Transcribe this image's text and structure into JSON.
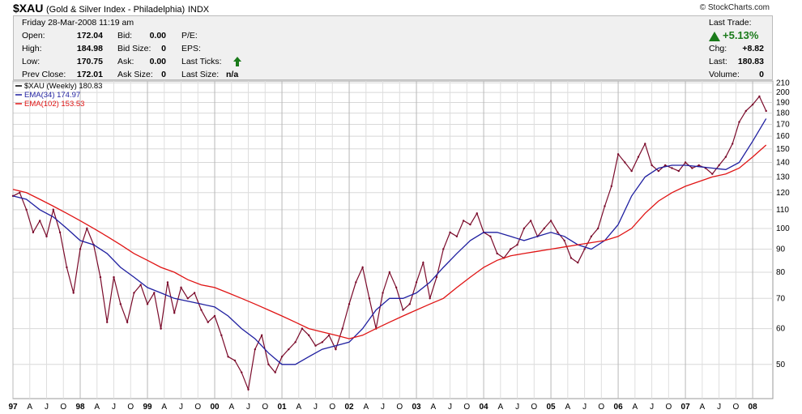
{
  "header": {
    "symbol": "$XAU",
    "name": "(Gold & Silver Index - Philadelphia)",
    "exchange": "INDX",
    "copyright": "© StockCharts.com",
    "date_line": "Friday  28-Mar-2008  11:19 am"
  },
  "quote": {
    "open_label": "Open:",
    "open": "172.04",
    "high_label": "High:",
    "high": "184.98",
    "low_label": "Low:",
    "low": "170.75",
    "prev_close_label": "Prev Close:",
    "prev_close": "172.01",
    "bid_label": "Bid:",
    "bid": "0.00",
    "bid_size_label": "Bid Size:",
    "bid_size": "0",
    "ask_label": "Ask:",
    "ask": "0.00",
    "ask_size_label": "Ask Size:",
    "ask_size": "0",
    "pe_label": "P/E:",
    "eps_label": "EPS:",
    "last_ticks_label": "Last Ticks:",
    "last_size_label": "Last Size:",
    "last_size": "n/a",
    "last_trade_label": "Last Trade:",
    "pct_change": "+5.13%",
    "chg_label": "Chg:",
    "chg": "+8.82",
    "last_label": "Last:",
    "last": "180.83",
    "volume_label": "Volume:",
    "volume": "0",
    "up_color": "#1a7a1a"
  },
  "chart_data": {
    "type": "line",
    "legend": [
      {
        "text": "$XAU (Weekly) 180.83",
        "color": "#000000"
      },
      {
        "text": "EMA(34) 174.97",
        "color": "#1f1fa0"
      },
      {
        "text": "EMA(102) 153.53",
        "color": "#e01414"
      }
    ],
    "y_scale": "log",
    "ylim": [
      42,
      212
    ],
    "y_ticks": [
      50,
      60,
      70,
      80,
      90,
      100,
      110,
      120,
      130,
      140,
      150,
      160,
      170,
      180,
      190,
      200,
      210
    ],
    "x_start": 1997.0,
    "x_end": 2008.3,
    "x_ticks": [
      {
        "label": "97",
        "x": 1997.0,
        "major": true
      },
      {
        "label": "A",
        "x": 1997.25
      },
      {
        "label": "J",
        "x": 1997.5
      },
      {
        "label": "O",
        "x": 1997.75
      },
      {
        "label": "98",
        "x": 1998.0,
        "major": true
      },
      {
        "label": "A",
        "x": 1998.25
      },
      {
        "label": "J",
        "x": 1998.5
      },
      {
        "label": "O",
        "x": 1998.75
      },
      {
        "label": "99",
        "x": 1999.0,
        "major": true
      },
      {
        "label": "A",
        "x": 1999.25
      },
      {
        "label": "J",
        "x": 1999.5
      },
      {
        "label": "O",
        "x": 1999.75
      },
      {
        "label": "00",
        "x": 2000.0,
        "major": true
      },
      {
        "label": "A",
        "x": 2000.25
      },
      {
        "label": "J",
        "x": 2000.5
      },
      {
        "label": "O",
        "x": 2000.75
      },
      {
        "label": "01",
        "x": 2001.0,
        "major": true
      },
      {
        "label": "A",
        "x": 2001.25
      },
      {
        "label": "J",
        "x": 2001.5
      },
      {
        "label": "O",
        "x": 2001.75
      },
      {
        "label": "02",
        "x": 2002.0,
        "major": true
      },
      {
        "label": "A",
        "x": 2002.25
      },
      {
        "label": "J",
        "x": 2002.5
      },
      {
        "label": "O",
        "x": 2002.75
      },
      {
        "label": "03",
        "x": 2003.0,
        "major": true
      },
      {
        "label": "A",
        "x": 2003.25
      },
      {
        "label": "J",
        "x": 2003.5
      },
      {
        "label": "O",
        "x": 2003.75
      },
      {
        "label": "04",
        "x": 2004.0,
        "major": true
      },
      {
        "label": "A",
        "x": 2004.25
      },
      {
        "label": "J",
        "x": 2004.5
      },
      {
        "label": "O",
        "x": 2004.75
      },
      {
        "label": "05",
        "x": 2005.0,
        "major": true
      },
      {
        "label": "A",
        "x": 2005.25
      },
      {
        "label": "J",
        "x": 2005.5
      },
      {
        "label": "O",
        "x": 2005.75
      },
      {
        "label": "06",
        "x": 2006.0,
        "major": true
      },
      {
        "label": "A",
        "x": 2006.25
      },
      {
        "label": "J",
        "x": 2006.5
      },
      {
        "label": "O",
        "x": 2006.75
      },
      {
        "label": "07",
        "x": 2007.0,
        "major": true
      },
      {
        "label": "A",
        "x": 2007.25
      },
      {
        "label": "J",
        "x": 2007.5
      },
      {
        "label": "O",
        "x": 2007.75
      },
      {
        "label": "08",
        "x": 2008.0,
        "major": true
      }
    ],
    "series": [
      {
        "name": "$XAU (Weekly)",
        "color": "#7a0a2a",
        "x": [
          1997.0,
          1997.1,
          1997.2,
          1997.3,
          1997.4,
          1997.5,
          1997.6,
          1997.7,
          1997.8,
          1997.9,
          1998.0,
          1998.1,
          1998.2,
          1998.3,
          1998.4,
          1998.5,
          1998.6,
          1998.7,
          1998.8,
          1998.9,
          1999.0,
          1999.1,
          1999.2,
          1999.3,
          1999.4,
          1999.5,
          1999.6,
          1999.7,
          1999.8,
          1999.9,
          2000.0,
          2000.1,
          2000.2,
          2000.3,
          2000.4,
          2000.5,
          2000.6,
          2000.7,
          2000.8,
          2000.9,
          2001.0,
          2001.1,
          2001.2,
          2001.3,
          2001.4,
          2001.5,
          2001.6,
          2001.7,
          2001.8,
          2001.9,
          2002.0,
          2002.1,
          2002.2,
          2002.3,
          2002.4,
          2002.5,
          2002.6,
          2002.7,
          2002.8,
          2002.9,
          2003.0,
          2003.1,
          2003.2,
          2003.3,
          2003.4,
          2003.5,
          2003.6,
          2003.7,
          2003.8,
          2003.9,
          2004.0,
          2004.1,
          2004.2,
          2004.3,
          2004.4,
          2004.5,
          2004.6,
          2004.7,
          2004.8,
          2004.9,
          2005.0,
          2005.1,
          2005.2,
          2005.3,
          2005.4,
          2005.5,
          2005.6,
          2005.7,
          2005.8,
          2005.9,
          2006.0,
          2006.1,
          2006.2,
          2006.3,
          2006.4,
          2006.5,
          2006.6,
          2006.7,
          2006.8,
          2006.9,
          2007.0,
          2007.1,
          2007.2,
          2007.3,
          2007.4,
          2007.5,
          2007.6,
          2007.7,
          2007.8,
          2007.9,
          2008.0,
          2008.1,
          2008.2
        ],
        "values": [
          118,
          120,
          110,
          98,
          104,
          96,
          110,
          98,
          82,
          72,
          90,
          100,
          92,
          78,
          62,
          78,
          68,
          62,
          72,
          75,
          68,
          72,
          60,
          76,
          65,
          74,
          70,
          72,
          66,
          62,
          64,
          58,
          52,
          51,
          48,
          44,
          54,
          58,
          50,
          48,
          52,
          54,
          56,
          60,
          58,
          55,
          56,
          58,
          54,
          60,
          68,
          76,
          82,
          70,
          60,
          72,
          80,
          74,
          66,
          68,
          76,
          84,
          70,
          78,
          90,
          98,
          96,
          104,
          102,
          108,
          98,
          96,
          88,
          86,
          90,
          92,
          100,
          104,
          96,
          100,
          104,
          98,
          94,
          86,
          84,
          90,
          96,
          100,
          112,
          124,
          146,
          140,
          134,
          144,
          154,
          138,
          134,
          138,
          136,
          134,
          140,
          136,
          138,
          136,
          132,
          138,
          144,
          154,
          172,
          182,
          188,
          196,
          182
        ]
      },
      {
        "name": "EMA(34)",
        "color": "#1f1fa0",
        "x": [
          1997.0,
          1997.2,
          1997.4,
          1997.6,
          1997.8,
          1998.0,
          1998.2,
          1998.4,
          1998.6,
          1998.8,
          1999.0,
          1999.2,
          1999.4,
          1999.6,
          1999.8,
          2000.0,
          2000.2,
          2000.4,
          2000.6,
          2000.8,
          2001.0,
          2001.2,
          2001.4,
          2001.6,
          2001.8,
          2002.0,
          2002.2,
          2002.4,
          2002.6,
          2002.8,
          2003.0,
          2003.2,
          2003.4,
          2003.6,
          2003.8,
          2004.0,
          2004.2,
          2004.4,
          2004.6,
          2004.8,
          2005.0,
          2005.2,
          2005.4,
          2005.6,
          2005.8,
          2006.0,
          2006.2,
          2006.4,
          2006.6,
          2006.8,
          2007.0,
          2007.2,
          2007.4,
          2007.6,
          2007.8,
          2008.0,
          2008.2
        ],
        "values": [
          118,
          116,
          110,
          106,
          100,
          94,
          92,
          88,
          82,
          78,
          74,
          72,
          70,
          69,
          68,
          67,
          64,
          60,
          57,
          53,
          50,
          50,
          52,
          54,
          55,
          56,
          60,
          66,
          70,
          70,
          72,
          76,
          82,
          88,
          94,
          98,
          98,
          96,
          94,
          96,
          98,
          96,
          92,
          90,
          94,
          102,
          118,
          130,
          136,
          138,
          138,
          137,
          136,
          135,
          140,
          156,
          175
        ]
      },
      {
        "name": "EMA(102)",
        "color": "#e01414",
        "x": [
          1997.0,
          1997.2,
          1997.4,
          1997.6,
          1997.8,
          1998.0,
          1998.2,
          1998.4,
          1998.6,
          1998.8,
          1999.0,
          1999.2,
          1999.4,
          1999.6,
          1999.8,
          2000.0,
          2000.2,
          2000.4,
          2000.6,
          2000.8,
          2001.0,
          2001.2,
          2001.4,
          2001.6,
          2001.8,
          2002.0,
          2002.2,
          2002.4,
          2002.6,
          2002.8,
          2003.0,
          2003.2,
          2003.4,
          2003.6,
          2003.8,
          2004.0,
          2004.2,
          2004.4,
          2004.6,
          2004.8,
          2005.0,
          2005.2,
          2005.4,
          2005.6,
          2005.8,
          2006.0,
          2006.2,
          2006.4,
          2006.6,
          2006.8,
          2007.0,
          2007.2,
          2007.4,
          2007.6,
          2007.8,
          2008.0,
          2008.2
        ],
        "values": [
          122,
          120,
          116,
          112,
          108,
          104,
          100,
          96,
          92,
          88,
          85,
          82,
          80,
          77,
          75,
          74,
          72,
          70,
          68,
          66,
          64,
          62,
          60,
          59,
          58,
          57,
          58,
          60,
          62,
          64,
          66,
          68,
          70,
          74,
          78,
          82,
          85,
          87,
          88,
          89,
          90,
          91,
          92,
          93,
          94,
          96,
          100,
          108,
          115,
          120,
          124,
          127,
          130,
          132,
          136,
          144,
          153
        ]
      }
    ]
  }
}
